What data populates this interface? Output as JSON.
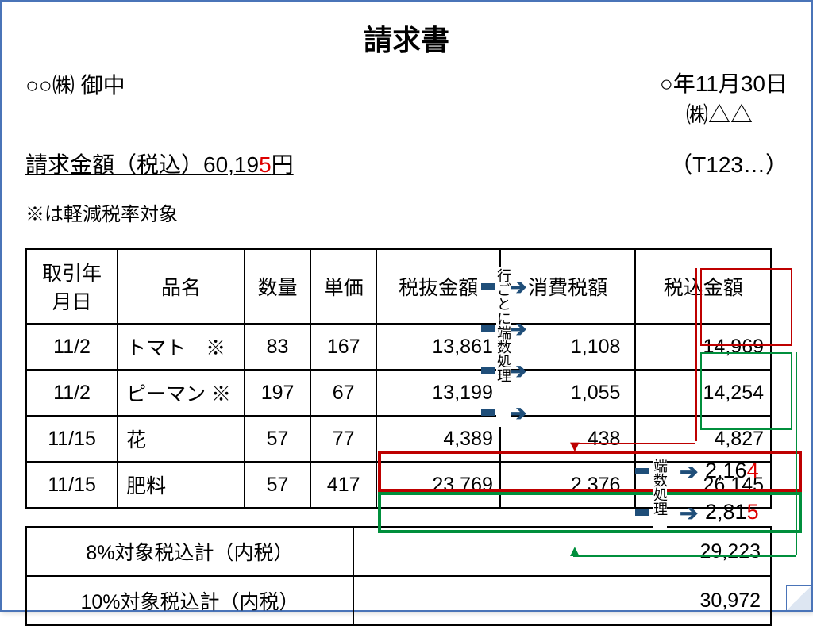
{
  "title": "請求書",
  "addressee": "○○㈱ 御中",
  "date": "○年11月30日",
  "issuer": "㈱△△",
  "tax_id": "（T123…）",
  "amount_label_prefix": "請求金額（税込）60,19",
  "amount_red_digit": "5",
  "amount_label_suffix": "円",
  "reduced_note": "※は軽減税率対象",
  "headers": {
    "date": "取引年月日",
    "name": "品名",
    "qty": "数量",
    "unit": "単価",
    "excl": "税抜金額",
    "tax": "消費税額",
    "incl": "税込金額"
  },
  "rows": [
    {
      "date": "11/2",
      "name": "トマト　※",
      "qty": "83",
      "unit": "167",
      "excl": "13,861",
      "tax": "1,108",
      "incl": "14,969"
    },
    {
      "date": "11/2",
      "name": "ピーマン ※",
      "qty": "197",
      "unit": "67",
      "excl": "13,199",
      "tax": "1,055",
      "incl": "14,254"
    },
    {
      "date": "11/15",
      "name": "花",
      "qty": "57",
      "unit": "77",
      "excl": "4,389",
      "tax": "438",
      "incl": "4,827"
    },
    {
      "date": "11/15",
      "name": "肥料",
      "qty": "57",
      "unit": "417",
      "excl": "23,769",
      "tax": "2,376",
      "incl": "26,145"
    }
  ],
  "summary": [
    {
      "label": "8%対象税込計（内税）",
      "val": "29,223",
      "tax_prefix": "2,16",
      "tax_red": "4"
    },
    {
      "label": "10%対象税込計（内税）",
      "val": "30,972",
      "tax_prefix": "2,81",
      "tax_red": "5"
    }
  ],
  "labels": {
    "per_row": "行ごとに端数処理",
    "rounding": "端数処理"
  },
  "colors": {
    "red": "#be0000",
    "green": "#008f3c",
    "blue": "#1f4e79"
  },
  "col_widths": {
    "date": 108,
    "name": 150,
    "qty": 78,
    "unit": 78,
    "excl": 146,
    "tax": 160,
    "incl": 160
  }
}
